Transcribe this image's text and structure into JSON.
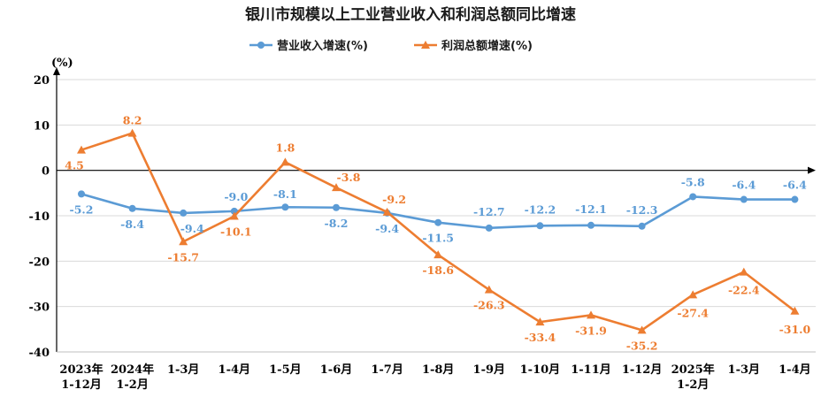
{
  "chart_data": {
    "type": "line",
    "title": "银川市规模以上工业营业收入和利润总额同比增速",
    "ylabel": "(%)",
    "xlabel": "",
    "ylim": [
      -40,
      20
    ],
    "yticks": [
      20,
      10,
      0,
      -10,
      -20,
      -30,
      -40
    ],
    "grid": true,
    "legend_position": "top-center",
    "categories": [
      [
        "2023年",
        "1-12月"
      ],
      [
        "2024年",
        "1-2月"
      ],
      [
        "1-3月"
      ],
      [
        "1-4月"
      ],
      [
        "1-5月"
      ],
      [
        "1-6月"
      ],
      [
        "1-7月"
      ],
      [
        "1-8月"
      ],
      [
        "1-9月"
      ],
      [
        "1-10月"
      ],
      [
        "1-11月"
      ],
      [
        "1-12月"
      ],
      [
        "2025年",
        "1-2月"
      ],
      [
        "1-3月"
      ],
      [
        "1-4月"
      ]
    ],
    "series": [
      {
        "name": "营业收入增速(%)",
        "color": "#5b9bd5",
        "marker": "circle",
        "values": [
          -5.2,
          -8.4,
          -9.4,
          -9.0,
          -8.1,
          -8.2,
          -9.4,
          -11.5,
          -12.7,
          -12.2,
          -12.1,
          -12.3,
          -5.8,
          -6.4,
          -6.4
        ]
      },
      {
        "name": "利润总额增速(%)",
        "color": "#ed7d31",
        "marker": "triangle",
        "values": [
          4.5,
          8.2,
          -15.7,
          -10.1,
          1.8,
          -3.8,
          -9.2,
          -18.6,
          -26.3,
          -33.4,
          -31.9,
          -35.2,
          -27.4,
          -22.4,
          -31.0
        ]
      }
    ]
  }
}
